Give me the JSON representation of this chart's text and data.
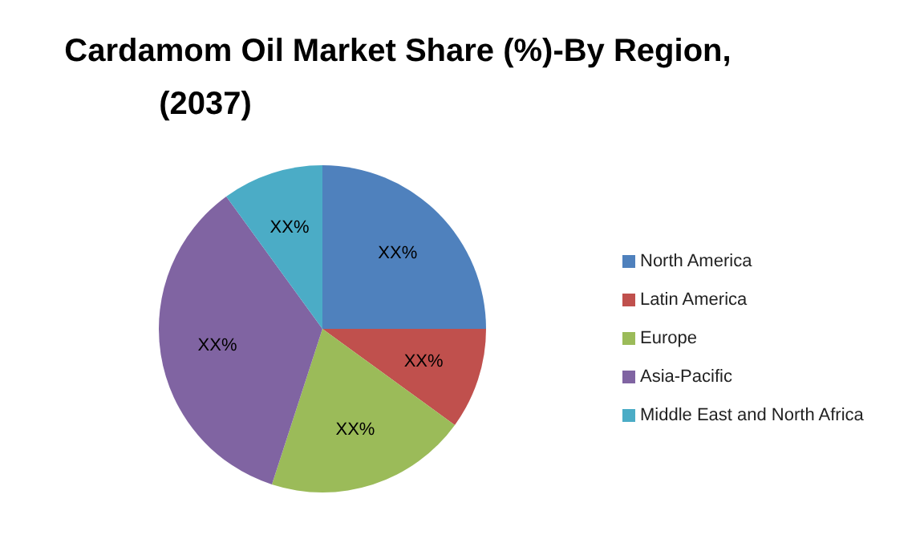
{
  "chart_data": {
    "type": "pie",
    "title": "Cardamom Oil Market Share (%)-By Region, (2037)",
    "categories": [
      "North America",
      "Latin America",
      "Europe",
      "Asia-Pacific",
      "Middle East and North Africa"
    ],
    "values": [
      25,
      10,
      20,
      35,
      10
    ],
    "colors": [
      "#4f81bd",
      "#c0504d",
      "#9bbb59",
      "#8064a2",
      "#4bacc6"
    ],
    "value_labels": [
      "XX%",
      "XX%",
      "XX%",
      "XX%",
      "XX%"
    ],
    "legend": "right"
  }
}
